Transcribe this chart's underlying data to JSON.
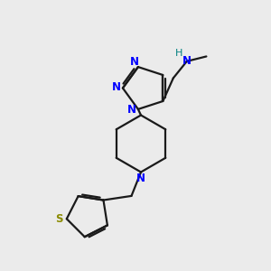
{
  "bg_color": "#ebebeb",
  "bond_color": "#1a1a1a",
  "n_color": "#0000ff",
  "s_color": "#8b8b00",
  "h_color": "#008080",
  "lw": 1.6,
  "fig_size": [
    3.0,
    3.0
  ],
  "dpi": 100,
  "xlim": [
    0,
    10
  ],
  "ylim": [
    0,
    10
  ]
}
